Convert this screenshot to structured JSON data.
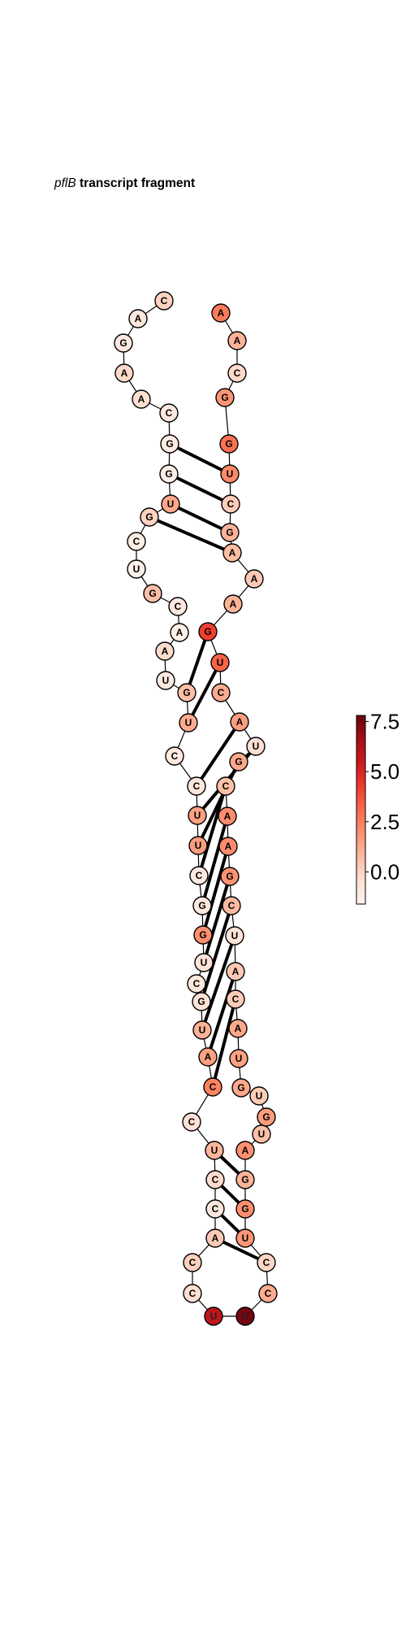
{
  "title": {
    "name_italic": "pflB",
    "rest": " transcript fragment"
  },
  "structure": {
    "nucleotides": [
      {
        "base": "C",
        "value": 0.0
      },
      {
        "base": "A",
        "value": -0.8
      },
      {
        "base": "G",
        "value": -1.0
      },
      {
        "base": "A",
        "value": -0.2
      },
      {
        "base": "A",
        "value": -0.4
      },
      {
        "base": "C",
        "value": -0.9
      },
      {
        "base": "G",
        "value": -1.0
      },
      {
        "base": "G",
        "value": -1.2
      },
      {
        "base": "U",
        "value": 1.3
      },
      {
        "base": "G",
        "value": 0.0
      },
      {
        "base": "C",
        "value": -1.2
      },
      {
        "base": "U",
        "value": -1.4
      },
      {
        "base": "G",
        "value": 0.6
      },
      {
        "base": "C",
        "value": -0.9
      },
      {
        "base": "A",
        "value": -1.3
      },
      {
        "base": "A",
        "value": -0.3
      },
      {
        "base": "U",
        "value": -1.0
      },
      {
        "base": "G",
        "value": 0.6
      },
      {
        "base": "U",
        "value": 1.2
      },
      {
        "base": "C",
        "value": -1.0
      },
      {
        "base": "C",
        "value": -0.8
      },
      {
        "base": "U",
        "value": 1.5
      },
      {
        "base": "U",
        "value": 1.6
      },
      {
        "base": "C",
        "value": -1.0
      },
      {
        "base": "G",
        "value": -0.9
      },
      {
        "base": "G",
        "value": 2.0
      },
      {
        "base": "U",
        "value": -0.6
      },
      {
        "base": "C",
        "value": -0.8
      },
      {
        "base": "G",
        "value": -0.6
      },
      {
        "base": "U",
        "value": 1.0
      },
      {
        "base": "A",
        "value": 1.5
      },
      {
        "base": "C",
        "value": 2.4
      },
      {
        "base": "C",
        "value": -0.5
      },
      {
        "base": "U",
        "value": 0.9
      },
      {
        "base": "C",
        "value": -0.3
      },
      {
        "base": "C",
        "value": -0.8
      },
      {
        "base": "A",
        "value": 0.3
      },
      {
        "base": "C",
        "value": 0.1
      },
      {
        "base": "C",
        "value": -0.4
      },
      {
        "base": "U",
        "value": 5.8
      },
      {
        "base": "U",
        "value": 7.5
      },
      {
        "base": "C",
        "value": 1.2
      },
      {
        "base": "C",
        "value": -0.1
      },
      {
        "base": "U",
        "value": 1.8
      },
      {
        "base": "G",
        "value": 2.0
      },
      {
        "base": "G",
        "value": 1.0
      },
      {
        "base": "A",
        "value": 2.0
      },
      {
        "base": "U",
        "value": 0.6
      },
      {
        "base": "G",
        "value": 1.6
      },
      {
        "base": "U",
        "value": 0.2
      },
      {
        "base": "G",
        "value": 1.3
      },
      {
        "base": "U",
        "value": 1.5
      },
      {
        "base": "A",
        "value": 1.3
      },
      {
        "base": "C",
        "value": 0.2
      },
      {
        "base": "A",
        "value": 0.3
      },
      {
        "base": "U",
        "value": -0.6
      },
      {
        "base": "C",
        "value": 0.8
      },
      {
        "base": "G",
        "value": 1.9
      },
      {
        "base": "A",
        "value": 2.1
      },
      {
        "base": "A",
        "value": 2.1
      },
      {
        "base": "C",
        "value": 0.6
      },
      {
        "base": "G",
        "value": 1.3
      },
      {
        "base": "U",
        "value": -0.4
      },
      {
        "base": "A",
        "value": 1.6
      },
      {
        "base": "C",
        "value": 1.2
      },
      {
        "base": "U",
        "value": 3.3
      },
      {
        "base": "G",
        "value": 4.2
      },
      {
        "base": "A",
        "value": 1.0
      },
      {
        "base": "A",
        "value": 0.3
      },
      {
        "base": "A",
        "value": 0.7
      },
      {
        "base": "G",
        "value": 1.0
      },
      {
        "base": "C",
        "value": 0.2
      },
      {
        "base": "U",
        "value": 2.2
      },
      {
        "base": "G",
        "value": 2.9
      },
      {
        "base": "G",
        "value": 1.8
      },
      {
        "base": "C",
        "value": -0.2
      },
      {
        "base": "A",
        "value": 1.0
      },
      {
        "base": "A",
        "value": 2.6
      }
    ],
    "pairs": [
      [
        6,
        72
      ],
      [
        7,
        71
      ],
      [
        8,
        70
      ],
      [
        9,
        69
      ],
      [
        17,
        66
      ],
      [
        18,
        65
      ],
      [
        20,
        63
      ],
      [
        21,
        62
      ],
      [
        22,
        61
      ],
      [
        23,
        60
      ],
      [
        24,
        59
      ],
      [
        25,
        58
      ],
      [
        26,
        57
      ],
      [
        28,
        56
      ],
      [
        29,
        55
      ],
      [
        30,
        54
      ],
      [
        31,
        53
      ],
      [
        33,
        45
      ],
      [
        34,
        44
      ],
      [
        35,
        43
      ],
      [
        36,
        42
      ]
    ]
  },
  "colorbar": {
    "min": -1.6,
    "max": 7.8,
    "ticks": [
      "0.0",
      "2.5",
      "5.0",
      "7.5"
    ],
    "tick_values": [
      0.0,
      2.5,
      5.0,
      7.5
    ],
    "colors": [
      "#fff5f0",
      "#fee0d2",
      "#fcbba1",
      "#fc9272",
      "#fb6a4a",
      "#ef3b2c",
      "#cb181d",
      "#a50f15",
      "#67000d"
    ]
  }
}
